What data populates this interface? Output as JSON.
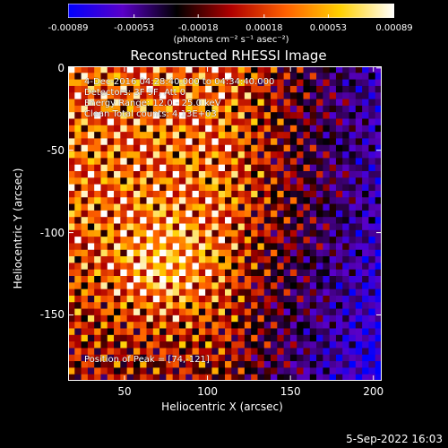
{
  "colorbar": {
    "ticks": [
      "-0.00089",
      "-0.00053",
      "-0.00018",
      "0.00018",
      "0.00053",
      "0.00089"
    ],
    "units_text": "(photons cm⁻² s⁻¹ asec⁻²)",
    "colors": [
      "#0000ff",
      "#5a00c8",
      "#000000",
      "#b00000",
      "#ff6000",
      "#ffd000",
      "#ffffff"
    ]
  },
  "chart_data": {
    "type": "heatmap",
    "title": "Reconstructed RHESSI Image",
    "xlabel": "Heliocentric X (arcsec)",
    "ylabel": "Heliocentric Y (arcsec)",
    "xlim": [
      16,
      205
    ],
    "ylim": [
      -190,
      1
    ],
    "x_ticks": [
      50,
      100,
      150,
      200
    ],
    "y_ticks": [
      0,
      -50,
      -100,
      -150
    ],
    "value_range": [
      -0.00089,
      0.00089
    ],
    "peak": [
      74,
      -121
    ],
    "annotations": {
      "time": "4-Dec-2016 04:28:40.000 to 04:34:40.000",
      "detectors": "Detectors: 3F 9F, Att 0",
      "energy": "Energy Range: 12.0 - 25.0 keV",
      "method": "Clean    Total counts: 4.13E+03",
      "peak_text": "Position of Peak = [74,-121]"
    }
  },
  "footer": {
    "timestamp": "5-Sep-2022 16:03"
  }
}
